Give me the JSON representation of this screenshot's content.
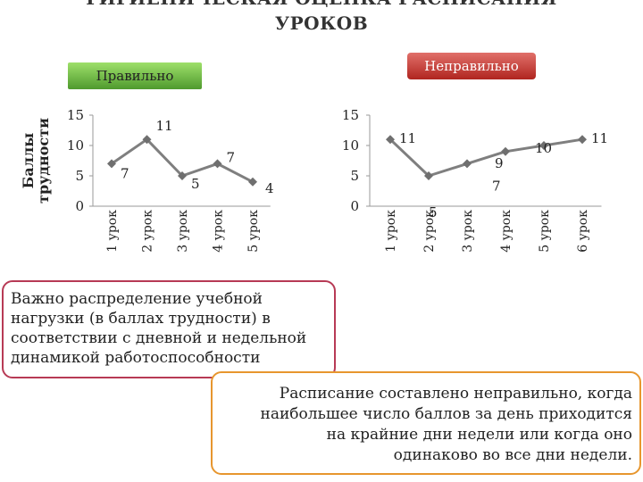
{
  "header": {
    "title_line1": "ГИГИЕНИЧЕСКАЯ ОЦЕНКА РАСПИСАНИЯ",
    "title_line2": "УРОКОВ"
  },
  "labels": {
    "correct": "Правильно",
    "incorrect": "Неправильно",
    "ylabel_line1": "Баллы",
    "ylabel_line2": "трудности"
  },
  "colors": {
    "correct_badge": "#6fba44",
    "incorrect_badge": "#c8332d",
    "line": "#7f7f7f",
    "marker": "#6f6f6f",
    "box1_border": "#b73a55",
    "box2_border": "#e7962e"
  },
  "chart_data": [
    {
      "type": "line",
      "categories": [
        "1 урок",
        "2 урок",
        "3 урок",
        "4 урок",
        "5 урок"
      ],
      "values": [
        7,
        11,
        5,
        7,
        4
      ],
      "data_labels": [
        "7",
        "11",
        "5",
        "7",
        "4"
      ],
      "yticks": [
        "0",
        "5",
        "10",
        "15"
      ],
      "ylim": [
        0,
        15
      ],
      "grid": false,
      "ylabel": "Баллы трудности"
    },
    {
      "type": "line",
      "categories": [
        "1 урок",
        "2 урок",
        "3 урок",
        "4 урок",
        "5 урок",
        "6 урок"
      ],
      "values": [
        11,
        5,
        7,
        9,
        10,
        11
      ],
      "data_labels": [
        "11",
        "5",
        "7",
        "9",
        "10",
        "11"
      ],
      "yticks": [
        "0",
        "5",
        "10",
        "15"
      ],
      "ylim": [
        0,
        15
      ],
      "grid": false
    }
  ],
  "notes": {
    "box1_lines": [
      "Важно распределение учебной",
      "нагрузки (в баллах трудности) в",
      "соответствии с дневной и недельной",
      "динамикой работоспособности"
    ],
    "box2_lines": [
      "Расписание составлено неправильно, когда",
      "наибольшее число баллов за день приходится",
      "на крайние дни недели или когда оно",
      "одинаково во все дни недели."
    ]
  }
}
